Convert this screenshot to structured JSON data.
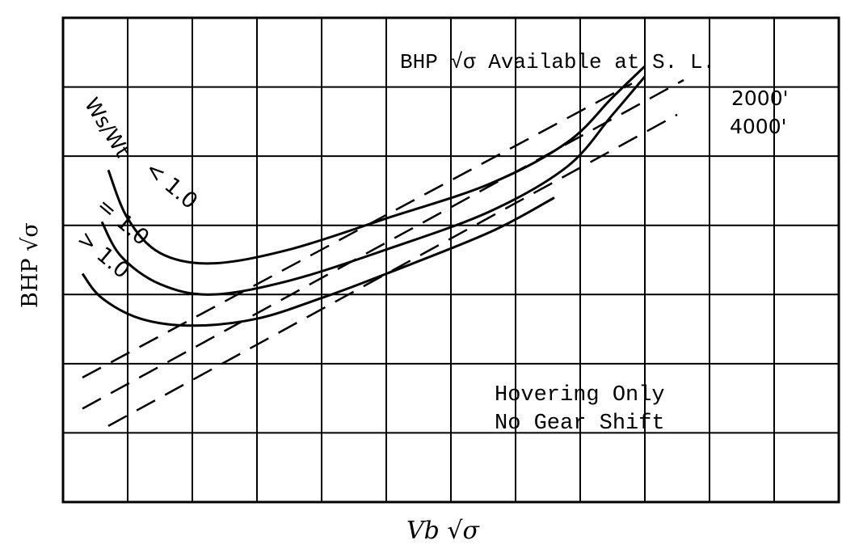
{
  "chart_data": {
    "type": "line",
    "title": "",
    "xlabel": "Vb √σ",
    "ylabel": "BHP √σ",
    "xlim": [
      0,
      12
    ],
    "ylim": [
      0,
      7
    ],
    "grid": true,
    "annotations": {
      "available_header": "BHP √σ Available at S. L.",
      "available_2000": "2000'",
      "available_4000": "4000'",
      "weight_ratio_label": "Ws/Wt",
      "ratio_lt": "< 1.0",
      "ratio_eq": "= 1.0",
      "ratio_gt": "> 1.0",
      "note_line1": "Hovering Only",
      "note_line2": "No Gear Shift"
    },
    "series": [
      {
        "name": "Ws/Wt < 1.0",
        "style": "solid",
        "x": [
          0.7,
          1.0,
          1.5,
          2.3,
          3.5,
          5.0,
          6.6,
          7.8,
          8.5,
          9.0
        ],
        "y": [
          4.8,
          4.1,
          3.6,
          3.45,
          3.65,
          4.1,
          4.6,
          5.2,
          5.85,
          6.3
        ]
      },
      {
        "name": "Ws/Wt = 1.0",
        "style": "solid",
        "x": [
          0.6,
          0.9,
          1.5,
          2.3,
          3.5,
          5.0,
          6.6,
          7.8,
          8.5,
          9.0
        ],
        "y": [
          4.05,
          3.55,
          3.15,
          3.0,
          3.2,
          3.65,
          4.2,
          4.85,
          5.6,
          6.15
        ]
      },
      {
        "name": "Ws/Wt > 1.0",
        "style": "solid",
        "x": [
          0.3,
          0.6,
          1.2,
          2.0,
          3.0,
          4.0,
          5.0,
          6.6,
          7.6
        ],
        "y": [
          3.3,
          2.95,
          2.65,
          2.55,
          2.65,
          2.95,
          3.3,
          3.9,
          4.4
        ]
      },
      {
        "name": "S. L.",
        "style": "dashed",
        "x": [
          0.3,
          8.8
        ],
        "y": [
          1.8,
          6.05
        ]
      },
      {
        "name": "2000'",
        "style": "dashed",
        "x": [
          0.3,
          9.6
        ],
        "y": [
          1.35,
          6.1
        ]
      },
      {
        "name": "4000'",
        "style": "dashed",
        "x": [
          0.7,
          9.5
        ],
        "y": [
          1.1,
          5.6
        ]
      }
    ]
  }
}
